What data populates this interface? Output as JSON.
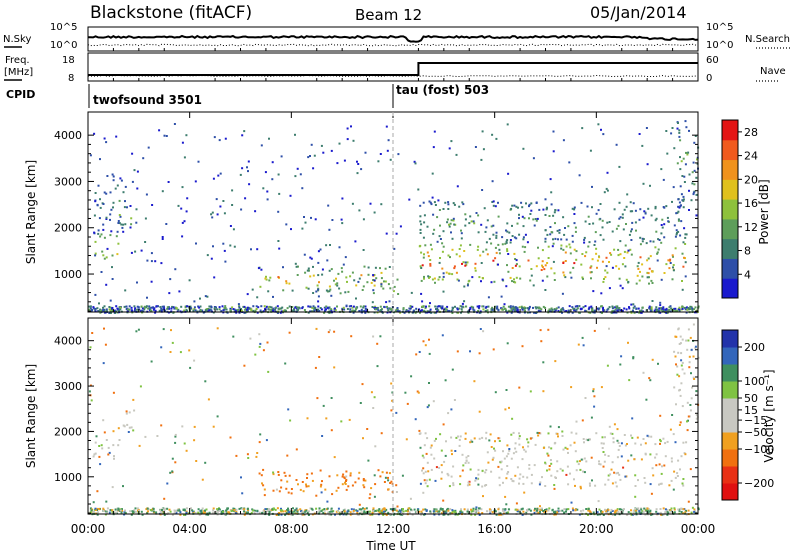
{
  "header": {
    "station": "Blackstone (fitACF)",
    "beam": "Beam 12",
    "date": "05/Jan/2014"
  },
  "noise_panel": {
    "left_label": "N.Sky",
    "right_label": "N.Search",
    "left_ticks": [
      "10^5",
      "10^0"
    ],
    "right_ticks": [
      "10^5",
      "10^0"
    ]
  },
  "freq_panel": {
    "left_label_line1": "Freq.",
    "left_label_line2": "[MHz]",
    "right_label": "Nave",
    "left_ticks": [
      18,
      8
    ],
    "right_ticks": [
      60,
      0
    ]
  },
  "cpid_panel": {
    "label": "CPID",
    "modes": [
      {
        "name": "twofsound 3501",
        "start_hour": 0
      },
      {
        "name": "tau (fost) 503",
        "start_hour": 12
      }
    ]
  },
  "colors": {
    "power_scale": [
      "#1a1acd",
      "#2e4fa8",
      "#3d7d6e",
      "#5e9e5a",
      "#8ec13c",
      "#e0c01d",
      "#f0921d",
      "#f05a1e",
      "#e41515"
    ],
    "velocity_scale": [
      "#2233aa",
      "#3366bb",
      "#3f8f5f",
      "#7fc342",
      "#c8c8c2",
      "#c8c8c2",
      "#f0a020",
      "#f07010",
      "#e83015",
      "#e01010"
    ],
    "ground_scatter": "#c7c7bf"
  },
  "chart_data": [
    {
      "type": "heatmap",
      "name": "power",
      "xlabel": "",
      "ylabel": "Slant Range [km]",
      "xlim": [
        "00:00",
        "24:00"
      ],
      "ylim": [
        180,
        4500
      ],
      "yticks": [
        1000,
        2000,
        3000,
        4000
      ],
      "xticks": [
        "00:00",
        "04:00",
        "08:00",
        "12:00",
        "16:00",
        "20:00",
        "00:00"
      ],
      "colorbar": {
        "label": "Power [dB]",
        "ticks": [
          4,
          8,
          12,
          16,
          20,
          24,
          28
        ],
        "range": [
          0,
          30
        ]
      },
      "echo_regions": [
        {
          "t_start": 0.2,
          "t_end": 1.2,
          "r_low": 1300,
          "r_high": 1900,
          "peak_db": 24
        },
        {
          "t_start": 0.2,
          "t_end": 1.5,
          "r_low": 1900,
          "r_high": 3200,
          "peak_db": 8
        },
        {
          "t_start": 1.2,
          "t_end": 1.9,
          "r_low": 2000,
          "r_high": 2500,
          "peak_db": 16
        },
        {
          "t_start": 6.7,
          "t_end": 12.0,
          "r_low": 600,
          "r_high": 1200,
          "peak_db": 24
        },
        {
          "t_start": 11.5,
          "t_end": 12.2,
          "r_low": 500,
          "r_high": 1000,
          "peak_db": 20
        },
        {
          "t_start": 13.0,
          "t_end": 23.5,
          "r_low": 800,
          "r_high": 1700,
          "peak_db": 30
        },
        {
          "t_start": 13.0,
          "t_end": 23.5,
          "r_low": 1700,
          "r_high": 2600,
          "peak_db": 12
        },
        {
          "t_start": 23.0,
          "t_end": 24.0,
          "r_low": 2500,
          "r_high": 4400,
          "peak_db": 12
        }
      ]
    },
    {
      "type": "heatmap",
      "name": "velocity",
      "xlabel": "Time UT",
      "ylabel": "Slant Range [km]",
      "xlim": [
        "00:00",
        "24:00"
      ],
      "ylim": [
        180,
        4500
      ],
      "yticks": [
        1000,
        2000,
        3000,
        4000
      ],
      "xticks": [
        "00:00",
        "04:00",
        "08:00",
        "12:00",
        "16:00",
        "20:00",
        "00:00"
      ],
      "colorbar": {
        "label": "Velocity [m s⁻¹]",
        "ticks": [
          200,
          100,
          50,
          15,
          -15,
          -50,
          -100,
          -200
        ],
        "range": [
          -250,
          250
        ]
      },
      "echo_regions": [
        {
          "t_start": 0.2,
          "t_end": 1.2,
          "r_low": 1300,
          "r_high": 1900,
          "velocity": 0
        },
        {
          "t_start": 1.2,
          "t_end": 1.9,
          "r_low": 2000,
          "r_high": 2500,
          "velocity": 0
        },
        {
          "t_start": 6.7,
          "t_end": 12.0,
          "r_low": 600,
          "r_high": 1200,
          "velocity": -60
        },
        {
          "t_start": 13.0,
          "t_end": 23.5,
          "r_low": 800,
          "r_high": 2000,
          "velocity": 0
        },
        {
          "t_start": 23.0,
          "t_end": 24.0,
          "r_low": 2200,
          "r_high": 4400,
          "velocity": 0
        }
      ]
    }
  ]
}
